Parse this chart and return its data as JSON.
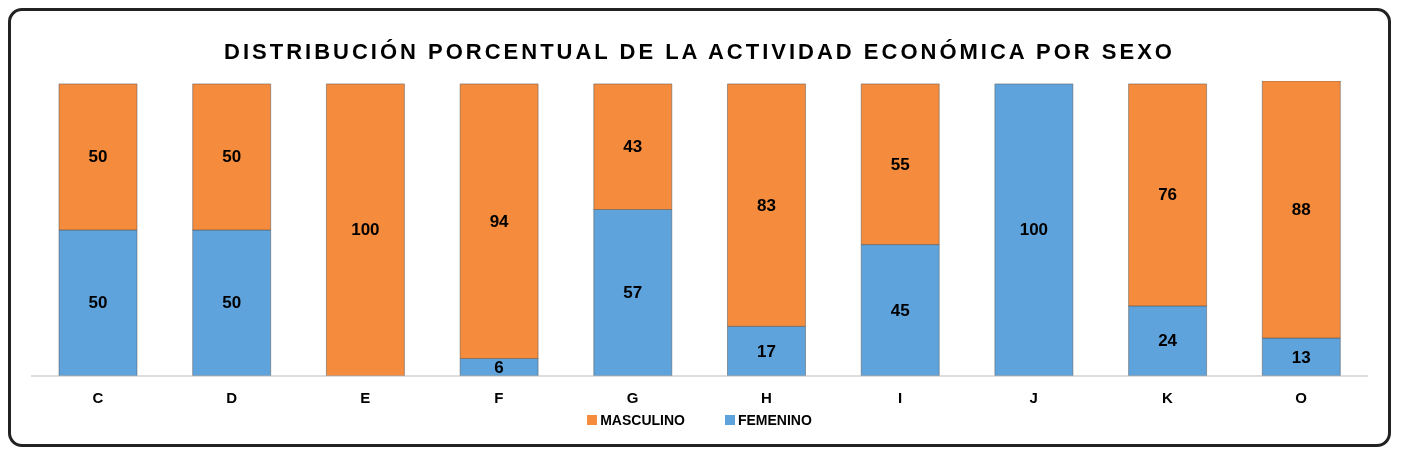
{
  "chart_data": {
    "type": "bar",
    "title": "DISTRIBUCIÓN PORCENTUAL DE LA ACTIVIDAD ECONÓMICA POR SEXO",
    "categories": [
      "C",
      "D",
      "E",
      "F",
      "G",
      "H",
      "I",
      "J",
      "K",
      "O"
    ],
    "stacked": true,
    "ylim": [
      0,
      101
    ],
    "tick_labels": "x",
    "legend": "bottom",
    "series": [
      {
        "name": "FEMENINO",
        "color": "#5fa3dc",
        "values": [
          50,
          50,
          0,
          6,
          57,
          17,
          45,
          100,
          24,
          13
        ],
        "value_labels": [
          "50",
          "50",
          null,
          "6",
          "57",
          "17",
          "45",
          "100",
          "24",
          "13"
        ]
      },
      {
        "name": "MASCULINO",
        "color": "#f58b3c",
        "values": [
          50,
          50,
          100,
          94,
          43,
          83,
          55,
          0,
          76,
          88
        ],
        "value_labels": [
          "50",
          "50",
          "100",
          "94",
          "43",
          "83",
          "55",
          null,
          "76",
          "88"
        ]
      }
    ]
  }
}
